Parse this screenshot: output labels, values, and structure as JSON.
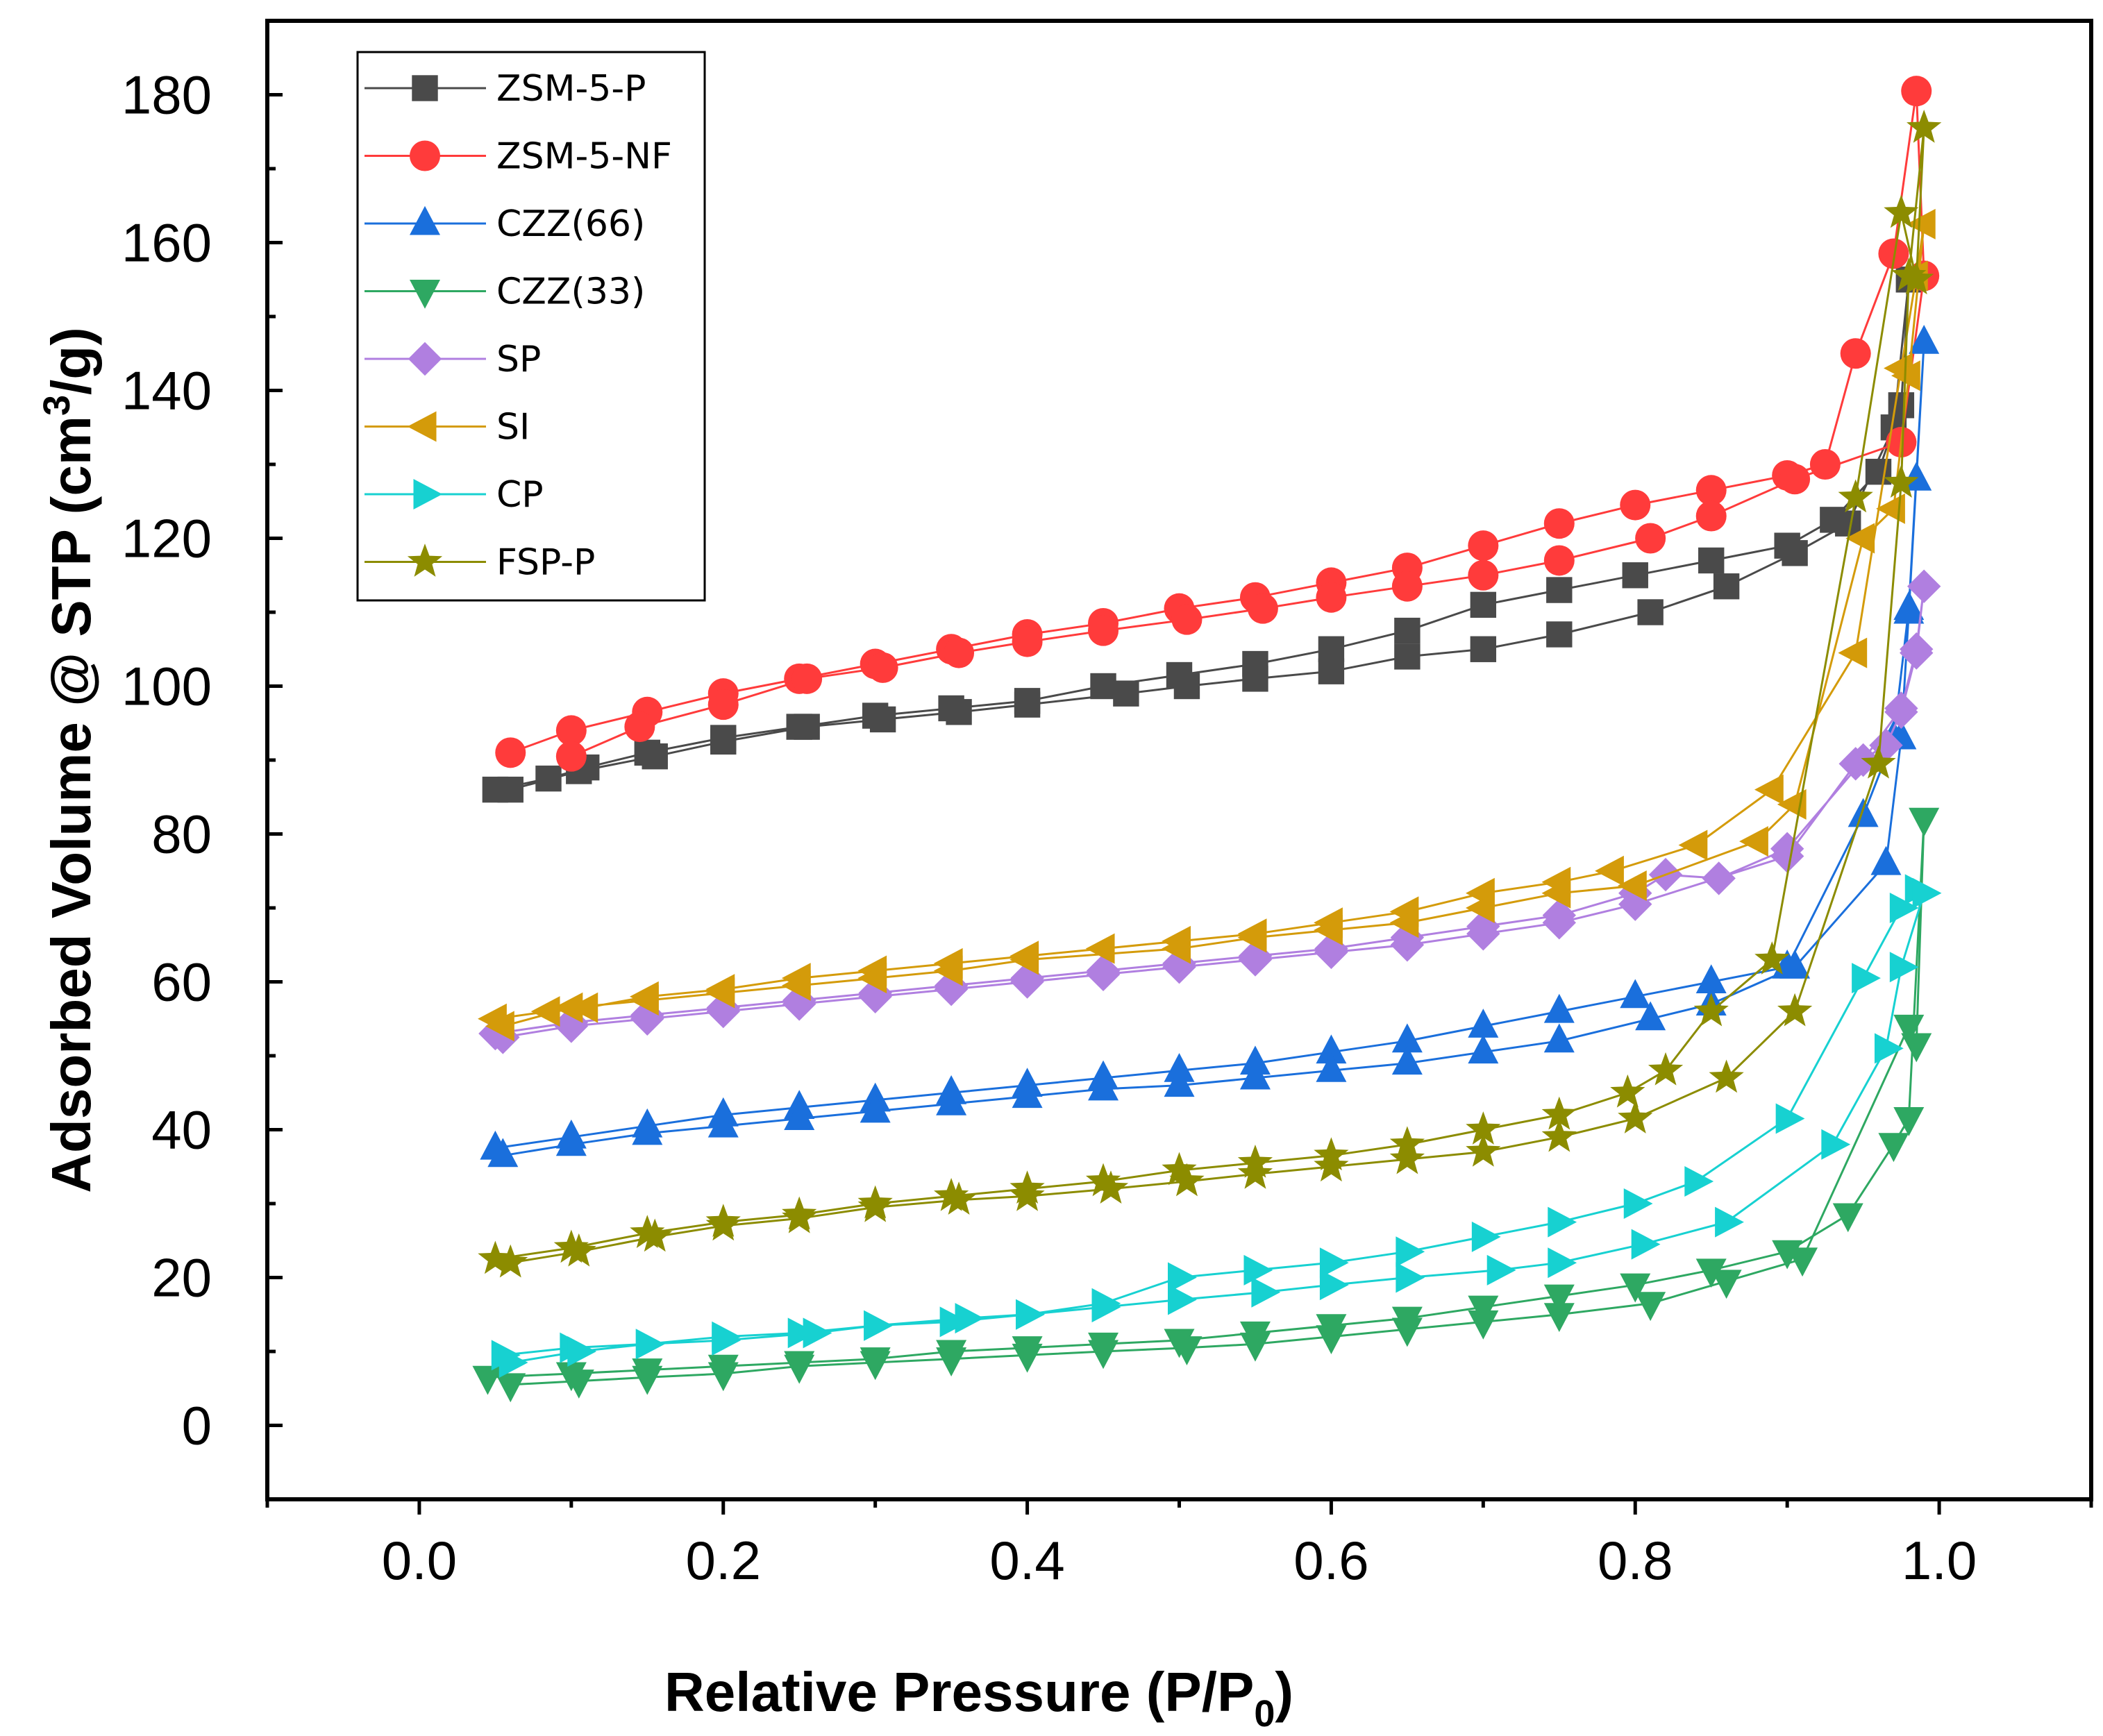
{
  "chart_data": {
    "type": "line",
    "xlabel": "Relative Pressure (P/P",
    "xlabel_sub": "0",
    "xlabel_tail": ")",
    "ylabel": "Adsorbed Volume @ STP (cm",
    "ylabel_sup": "3",
    "ylabel_tail": "/g)",
    "xlim": [
      -0.1,
      1.1
    ],
    "ylim": [
      -10,
      190
    ],
    "xticks": [
      "0.0",
      "0.2",
      "0.4",
      "0.6",
      "0.8",
      "1.0"
    ],
    "xtick_values": [
      0.0,
      0.2,
      0.4,
      0.6,
      0.8,
      1.0
    ],
    "yticks": [
      "0",
      "20",
      "40",
      "60",
      "80",
      "100",
      "120",
      "140",
      "160",
      "180"
    ],
    "ytick_values": [
      0,
      20,
      40,
      60,
      80,
      100,
      120,
      140,
      160,
      180
    ],
    "legend_position": "top-left",
    "series": [
      {
        "name": "ZSM-5-P",
        "color": "#4a4a4a",
        "marker": "square",
        "x": [
          0.05,
          0.085,
          0.11,
          0.15,
          0.2,
          0.25,
          0.3,
          0.35,
          0.4,
          0.45,
          0.5,
          0.55,
          0.6,
          0.65,
          0.7,
          0.75,
          0.8,
          0.85,
          0.9,
          0.93,
          0.96,
          0.975,
          0.98,
          0.97,
          0.94,
          0.905,
          0.86,
          0.81,
          0.75,
          0.7,
          0.65,
          0.6,
          0.55,
          0.505,
          0.465,
          0.4,
          0.355,
          0.305,
          0.255,
          0.2,
          0.155,
          0.105,
          0.06
        ],
        "y": [
          86,
          87.5,
          89,
          91,
          93,
          94.5,
          96,
          97,
          98,
          100,
          101.5,
          103,
          105,
          107.5,
          111,
          113,
          115,
          117,
          119,
          122.5,
          129,
          138,
          155,
          135,
          122,
          118,
          113.5,
          110,
          107,
          105,
          104,
          102,
          101,
          100,
          99,
          97.5,
          96.5,
          95.5,
          94.5,
          92.5,
          90.5,
          88.5,
          86
        ]
      },
      {
        "name": "ZSM-5-NF",
        "color": "#ff3b3b",
        "marker": "circle",
        "x": [
          0.06,
          0.1,
          0.15,
          0.2,
          0.25,
          0.3,
          0.35,
          0.4,
          0.45,
          0.5,
          0.55,
          0.6,
          0.65,
          0.7,
          0.75,
          0.8,
          0.85,
          0.9,
          0.925,
          0.945,
          0.97,
          0.985,
          0.99,
          0.975,
          0.905,
          0.85,
          0.81,
          0.75,
          0.7,
          0.65,
          0.6,
          0.555,
          0.505,
          0.45,
          0.4,
          0.355,
          0.305,
          0.255,
          0.2,
          0.145,
          0.1
        ],
        "y": [
          91,
          94,
          96.5,
          99,
          101,
          103,
          105,
          107,
          108.5,
          110.5,
          112,
          114,
          116,
          119,
          122,
          124.5,
          126.5,
          128.5,
          130,
          145,
          158.5,
          180.5,
          155.5,
          133,
          128,
          123,
          120,
          117,
          115,
          113.5,
          112,
          110.5,
          109,
          107.5,
          106,
          104.5,
          102.5,
          101,
          97.5,
          94.5,
          90.5
        ]
      },
      {
        "name": "CZZ(66)",
        "color": "#1a6fdc",
        "marker": "triangle-up",
        "x": [
          0.05,
          0.1,
          0.15,
          0.2,
          0.25,
          0.3,
          0.35,
          0.4,
          0.45,
          0.5,
          0.55,
          0.6,
          0.65,
          0.7,
          0.75,
          0.8,
          0.85,
          0.9,
          0.95,
          0.97,
          0.98,
          0.99,
          0.985,
          0.98,
          0.975,
          0.965,
          0.905,
          0.85,
          0.81,
          0.75,
          0.7,
          0.65,
          0.6,
          0.55,
          0.5,
          0.45,
          0.4,
          0.35,
          0.3,
          0.25,
          0.2,
          0.15,
          0.1,
          0.055
        ],
        "y": [
          37.5,
          39,
          40.5,
          42,
          43,
          44,
          45,
          46,
          47,
          48,
          49,
          50.5,
          52,
          54,
          56,
          58,
          60,
          62,
          82.5,
          93,
          110.5,
          146.5,
          128,
          110,
          93,
          76,
          62,
          57,
          55,
          52,
          50.5,
          49,
          48,
          47,
          46,
          45.5,
          44.5,
          43.5,
          42.5,
          41.5,
          40.5,
          39.5,
          38,
          36.5
        ]
      },
      {
        "name": "CZZ(33)",
        "color": "#2ea862",
        "marker": "triangle-down",
        "x": [
          0.045,
          0.1,
          0.15,
          0.2,
          0.25,
          0.3,
          0.35,
          0.4,
          0.45,
          0.5,
          0.55,
          0.6,
          0.65,
          0.7,
          0.75,
          0.8,
          0.85,
          0.9,
          0.94,
          0.97,
          0.98,
          0.99,
          0.985,
          0.98,
          0.91,
          0.86,
          0.81,
          0.75,
          0.7,
          0.65,
          0.6,
          0.55,
          0.505,
          0.45,
          0.4,
          0.35,
          0.3,
          0.25,
          0.2,
          0.15,
          0.105,
          0.06
        ],
        "y": [
          6.5,
          7,
          7.5,
          8,
          8.5,
          9,
          10,
          10.5,
          11,
          11.5,
          12.5,
          13.5,
          14.5,
          16,
          17.5,
          19,
          21,
          23.5,
          28.5,
          38,
          41.5,
          82,
          51.5,
          54,
          22.5,
          19.5,
          16.5,
          15,
          14,
          13,
          12,
          11,
          10.5,
          10,
          9.5,
          9,
          8.5,
          8,
          7,
          6.5,
          6,
          5.5
        ]
      },
      {
        "name": "SP",
        "color": "#b07fe0",
        "marker": "diamond",
        "x": [
          0.05,
          0.1,
          0.15,
          0.2,
          0.25,
          0.3,
          0.35,
          0.4,
          0.45,
          0.5,
          0.55,
          0.6,
          0.65,
          0.7,
          0.75,
          0.8,
          0.82,
          0.855,
          0.9,
          0.95,
          0.975,
          0.985,
          0.99,
          0.985,
          0.975,
          0.965,
          0.945,
          0.9,
          0.8,
          0.75,
          0.7,
          0.65,
          0.6,
          0.55,
          0.5,
          0.45,
          0.4,
          0.35,
          0.3,
          0.25,
          0.2,
          0.15,
          0.1,
          0.055
        ],
        "y": [
          53,
          54.5,
          55.5,
          56.5,
          57.5,
          58.5,
          59.5,
          60.5,
          61.5,
          62.5,
          63.5,
          64.5,
          66,
          67.5,
          69,
          72,
          74.5,
          74,
          78,
          90,
          97,
          105,
          113.5,
          104.5,
          96.5,
          92,
          89.5,
          77,
          70.5,
          68,
          66.5,
          65,
          64,
          63,
          62,
          61,
          60,
          59,
          58,
          57,
          56,
          55,
          54,
          52.5
        ]
      },
      {
        "name": "SI",
        "color": "#d49b0a",
        "marker": "triangle-left",
        "x": [
          0.05,
          0.085,
          0.11,
          0.15,
          0.2,
          0.25,
          0.3,
          0.35,
          0.4,
          0.45,
          0.5,
          0.55,
          0.6,
          0.65,
          0.7,
          0.75,
          0.785,
          0.84,
          0.89,
          0.945,
          0.975,
          0.985,
          0.99,
          0.98,
          0.97,
          0.95,
          0.905,
          0.88,
          0.8,
          0.75,
          0.7,
          0.65,
          0.6,
          0.55,
          0.5,
          0.4,
          0.35,
          0.3,
          0.25,
          0.2,
          0.15,
          0.1,
          0.055
        ],
        "y": [
          55,
          56,
          56.5,
          58,
          59,
          60.5,
          61.5,
          62.5,
          63.5,
          64.5,
          65.5,
          66.5,
          68,
          69.5,
          72,
          73.5,
          75,
          78.5,
          86,
          104.5,
          143,
          155.5,
          162.5,
          142,
          124,
          120,
          84,
          79,
          73,
          72,
          70,
          68,
          67,
          66,
          64.5,
          63,
          61.5,
          60.5,
          59.5,
          58.5,
          57.5,
          56.5,
          54
        ]
      },
      {
        "name": "CP",
        "color": "#17d1d1",
        "marker": "triangle-right",
        "x": [
          0.055,
          0.1,
          0.15,
          0.2,
          0.25,
          0.3,
          0.35,
          0.4,
          0.45,
          0.5,
          0.55,
          0.6,
          0.65,
          0.7,
          0.75,
          0.8,
          0.84,
          0.9,
          0.95,
          0.975,
          0.985,
          0.99,
          0.975,
          0.965,
          0.93,
          0.86,
          0.805,
          0.75,
          0.71,
          0.65,
          0.6,
          0.555,
          0.5,
          0.45,
          0.4,
          0.36,
          0.3,
          0.26,
          0.2,
          0.15,
          0.105,
          0.06
        ],
        "y": [
          9.5,
          10.5,
          11,
          12,
          12.5,
          13.5,
          14,
          15,
          16.5,
          20,
          21,
          22,
          23.5,
          25.5,
          27.5,
          30,
          33,
          41.5,
          60.5,
          70,
          72.5,
          72,
          62,
          51,
          38,
          27.5,
          24.5,
          22,
          21,
          20,
          19,
          18,
          17,
          16,
          15,
          14.5,
          13.5,
          12.5,
          11.5,
          11,
          10,
          8.5
        ]
      },
      {
        "name": "FSP-P",
        "color": "#8c8c00",
        "marker": "star",
        "x": [
          0.05,
          0.1,
          0.15,
          0.2,
          0.25,
          0.3,
          0.35,
          0.4,
          0.45,
          0.5,
          0.55,
          0.6,
          0.65,
          0.7,
          0.75,
          0.795,
          0.82,
          0.85,
          0.89,
          0.945,
          0.975,
          0.985,
          0.99,
          0.98,
          0.975,
          0.96,
          0.905,
          0.86,
          0.8,
          0.75,
          0.7,
          0.65,
          0.6,
          0.55,
          0.505,
          0.455,
          0.4,
          0.355,
          0.3,
          0.25,
          0.2,
          0.155,
          0.105,
          0.06
        ],
        "y": [
          22.5,
          24,
          26,
          27.5,
          28.5,
          30,
          31,
          32,
          33,
          34.5,
          35.5,
          36.5,
          38,
          40,
          42,
          45,
          48,
          56,
          63,
          125.5,
          164,
          155,
          175.5,
          155.5,
          127.5,
          89.5,
          56,
          47,
          41.5,
          39,
          37,
          36,
          35,
          34,
          33,
          32,
          31,
          30.5,
          29.5,
          28,
          27,
          25.5,
          23.5,
          22
        ]
      }
    ]
  }
}
